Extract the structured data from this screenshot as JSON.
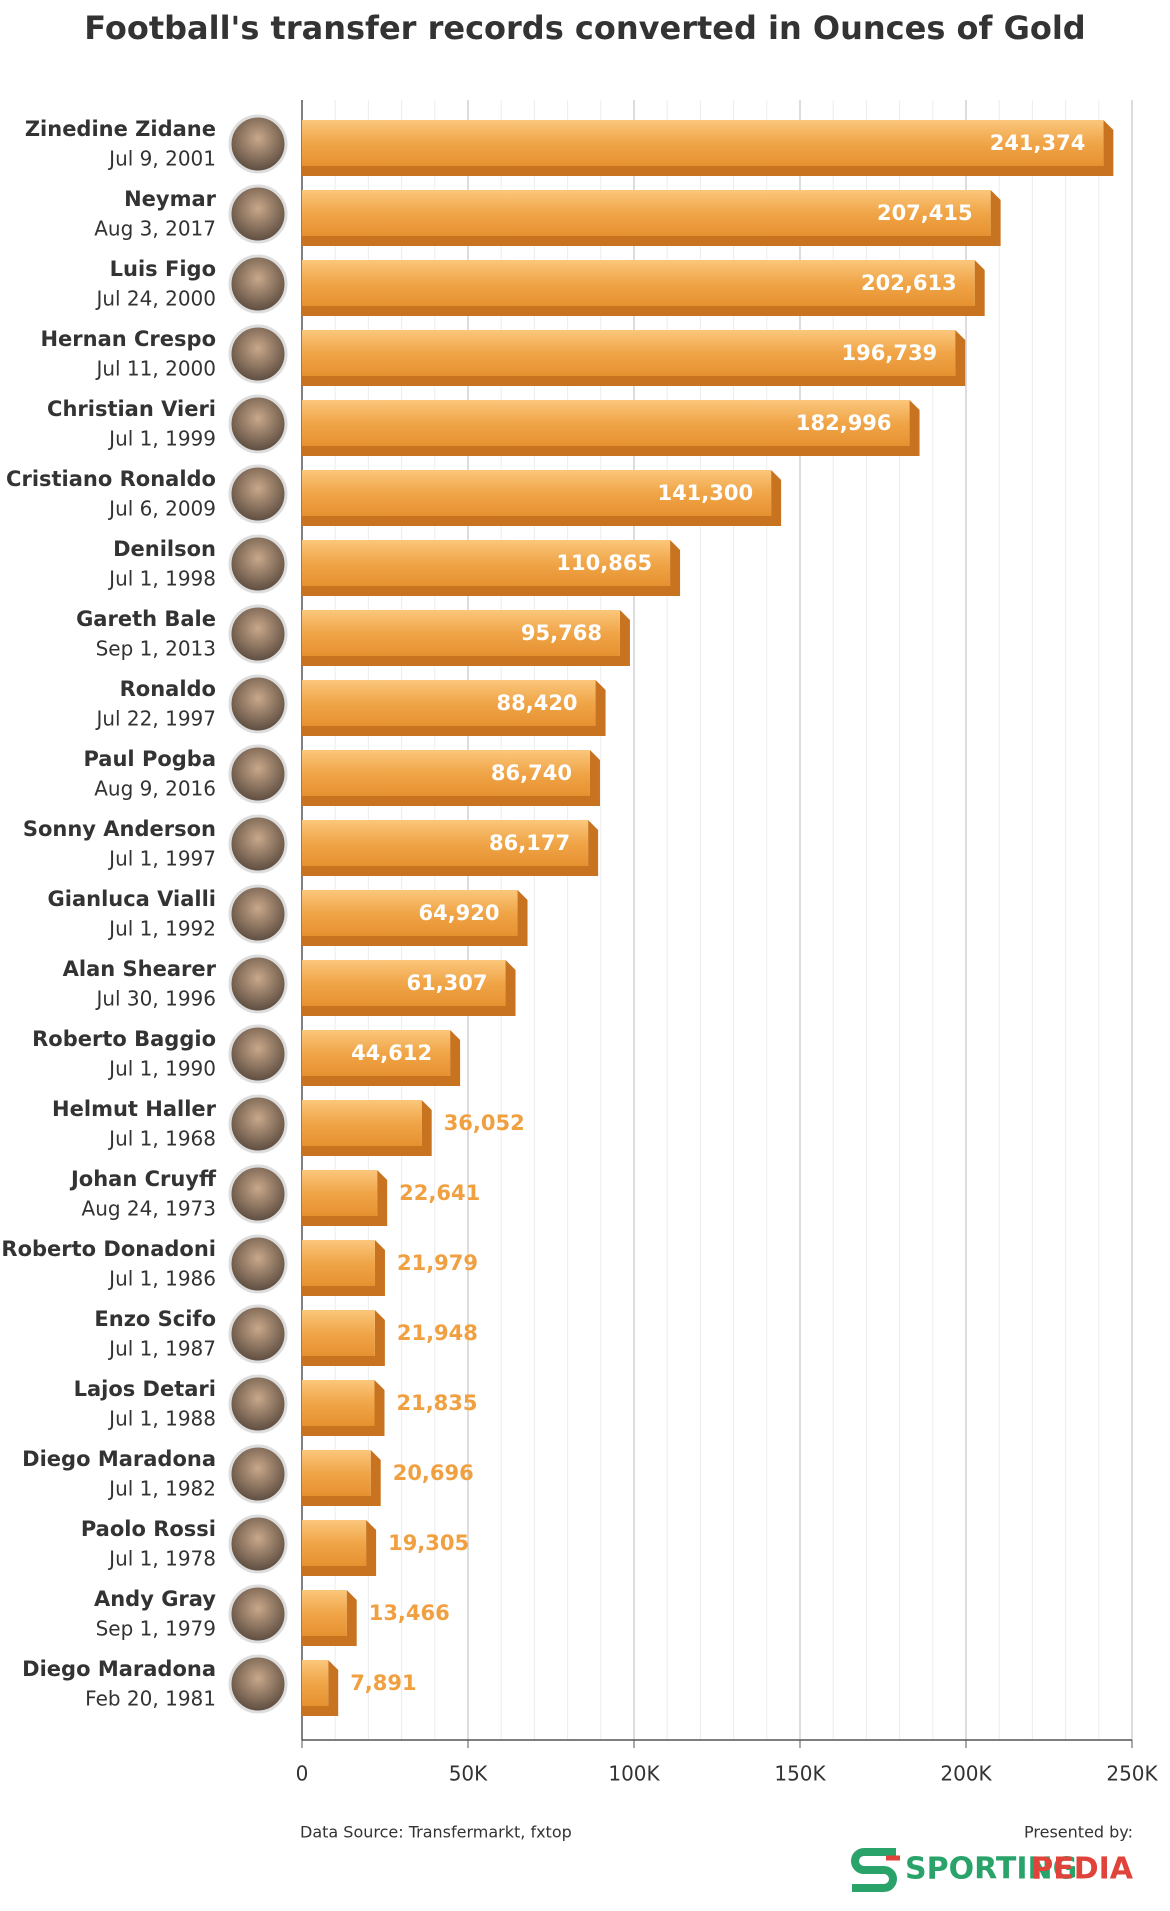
{
  "chart_data": {
    "type": "bar",
    "orientation": "horizontal",
    "title": "Football's transfer records converted in Ounces of Gold",
    "categories": [
      "Zinedine Zidane",
      "Neymar",
      "Luis Figo",
      "Hernan Crespo",
      "Christian Vieri",
      "Cristiano Ronaldo",
      "Denilson",
      "Gareth Bale",
      "Ronaldo",
      "Paul Pogba",
      "Sonny Anderson",
      "Gianluca Vialli",
      "Alan Shearer",
      "Roberto Baggio",
      "Helmut Haller",
      "Johan Cruyff",
      "Roberto Donadoni",
      "Enzo Scifo",
      "Lajos Detari",
      "Diego Maradona",
      "Paolo Rossi",
      "Andy Gray",
      "Diego Maradona"
    ],
    "dates": [
      "Jul 9, 2001",
      "Aug 3, 2017",
      "Jul 24, 2000",
      "Jul 11, 2000",
      "Jul 1, 1999",
      "Jul 6, 2009",
      "Jul 1, 1998",
      "Sep 1, 2013",
      "Jul 22, 1997",
      "Aug 9, 2016",
      "Jul 1, 1997",
      "Jul 1, 1992",
      "Jul 30, 1996",
      "Jul 1, 1990",
      "Jul 1, 1968",
      "Aug 24, 1973",
      "Jul 1, 1986",
      "Jul 1, 1987",
      "Jul 1, 1988",
      "Jul 1, 1982",
      "Jul 1, 1978",
      "Sep 1, 1979",
      "Feb 20, 1981"
    ],
    "values": [
      241374,
      207415,
      202613,
      196739,
      182996,
      141300,
      110865,
      95768,
      88420,
      86740,
      86177,
      64920,
      61307,
      44612,
      36052,
      22641,
      21979,
      21948,
      21835,
      20696,
      19305,
      13466,
      7891
    ],
    "value_labels": [
      "241,374",
      "207,415",
      "202,613",
      "196,739",
      "182,996",
      "141,300",
      "110,865",
      "95,768",
      "88,420",
      "86,740",
      "86,177",
      "64,920",
      "61,307",
      "44,612",
      "36,052",
      "22,641",
      "21,979",
      "21,948",
      "21,835",
      "20,696",
      "19,305",
      "13,466",
      "7,891"
    ],
    "color": "#f0a040",
    "xlim": [
      0,
      250000
    ],
    "xticks": [
      0,
      {
        "value": 50000,
        "label": "50K"
      },
      {
        "value": 100000,
        "label": "100K"
      },
      {
        "value": 150000,
        "label": "150K"
      },
      {
        "value": 200000,
        "label": "200K"
      },
      {
        "value": 250000,
        "label": "250K"
      }
    ],
    "minor_xticks": [
      10000,
      20000,
      30000,
      40000,
      60000,
      70000,
      80000,
      90000,
      110000,
      120000,
      130000,
      140000,
      160000,
      170000,
      180000,
      190000,
      210000,
      220000,
      230000,
      240000
    ],
    "grid": true,
    "source": "Data Source: Transfermarkt, fxtop",
    "presented_by": "Presented by:",
    "brand": [
      "SPORTING",
      "PEDIA"
    ]
  }
}
